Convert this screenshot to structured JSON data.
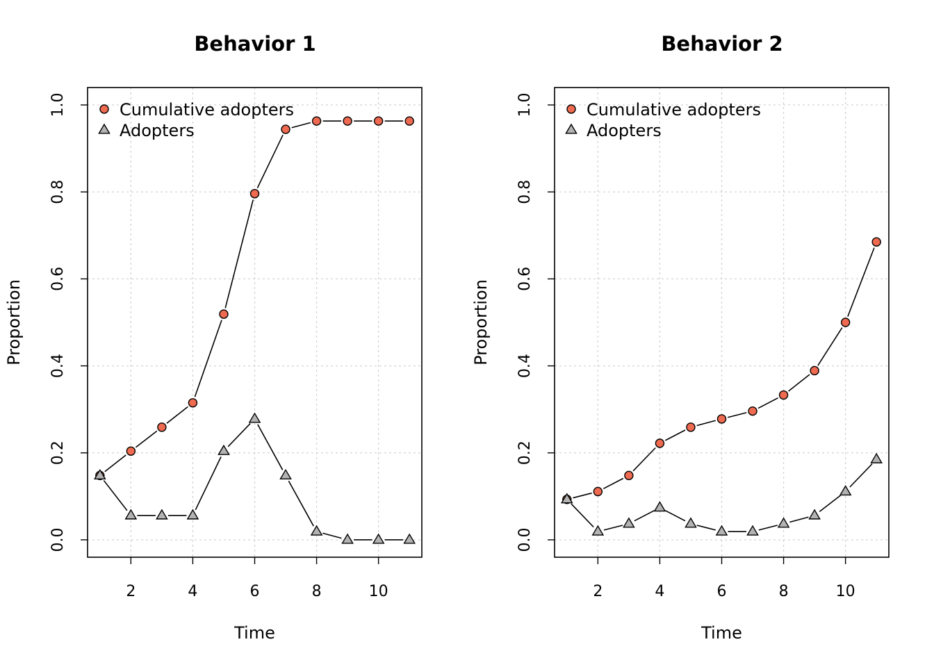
{
  "chart_data": [
    {
      "type": "line",
      "title": "Behavior 1",
      "xlabel": "Time",
      "ylabel": "Proportion",
      "xlim": [
        0.6,
        11.4
      ],
      "ylim": [
        -0.04,
        1.04
      ],
      "xticks": [
        "2",
        "4",
        "6",
        "8",
        "10"
      ],
      "yticks": [
        "0.0",
        "0.2",
        "0.4",
        "0.6",
        "0.8",
        "1.0"
      ],
      "grid": true,
      "legend_position": "top-left",
      "x": [
        1,
        2,
        3,
        4,
        5,
        6,
        7,
        8,
        9,
        10,
        11
      ],
      "series": [
        {
          "name": "Cumulative adopters",
          "marker": "circle",
          "color": "#ee6a50",
          "values": [
            0.148,
            0.204,
            0.259,
            0.315,
            0.519,
            0.796,
            0.944,
            0.963,
            0.963,
            0.963,
            0.963
          ]
        },
        {
          "name": "Adopters",
          "marker": "triangle",
          "color": "#b3b3b3",
          "values": [
            0.148,
            0.056,
            0.056,
            0.056,
            0.204,
            0.278,
            0.148,
            0.019,
            0.0,
            0.0,
            0.0
          ]
        }
      ]
    },
    {
      "type": "line",
      "title": "Behavior 2",
      "xlabel": "Time",
      "ylabel": "Proportion",
      "xlim": [
        0.6,
        11.4
      ],
      "ylim": [
        -0.04,
        1.04
      ],
      "xticks": [
        "2",
        "4",
        "6",
        "8",
        "10"
      ],
      "yticks": [
        "0.0",
        "0.2",
        "0.4",
        "0.6",
        "0.8",
        "1.0"
      ],
      "grid": true,
      "legend_position": "top-left",
      "x": [
        1,
        2,
        3,
        4,
        5,
        6,
        7,
        8,
        9,
        10,
        11
      ],
      "series": [
        {
          "name": "Cumulative adopters",
          "marker": "circle",
          "color": "#ee6a50",
          "values": [
            0.093,
            0.111,
            0.148,
            0.222,
            0.259,
            0.278,
            0.296,
            0.333,
            0.389,
            0.5,
            0.685
          ]
        },
        {
          "name": "Adopters",
          "marker": "triangle",
          "color": "#b3b3b3",
          "values": [
            0.093,
            0.019,
            0.037,
            0.074,
            0.037,
            0.019,
            0.019,
            0.037,
            0.056,
            0.111,
            0.185
          ]
        }
      ]
    }
  ]
}
